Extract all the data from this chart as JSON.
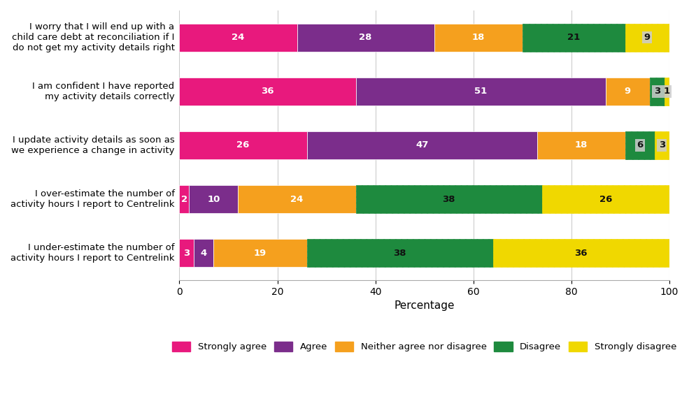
{
  "categories": [
    "I worry that I will end up with a\nchild care debt at reconciliation if I\ndo not get my activity details right",
    "I am confident I have reported\nmy activity details correctly",
    "I update activity details as soon as\nwe experience a change in activity",
    "I over-estimate the number of\nactivity hours I report to Centrelink",
    "I under-estimate the number of\nactivity hours I report to Centrelink"
  ],
  "strongly_agree": [
    24,
    36,
    26,
    2,
    3
  ],
  "agree": [
    28,
    51,
    47,
    10,
    4
  ],
  "neither": [
    18,
    9,
    18,
    24,
    19
  ],
  "disagree": [
    21,
    3,
    6,
    38,
    38
  ],
  "strongly_disagree": [
    9,
    1,
    3,
    26,
    36
  ],
  "colors": {
    "strongly_agree": "#e8197d",
    "agree": "#7b2d8b",
    "neither": "#f5a01e",
    "disagree": "#1e8a3e",
    "strongly_disagree": "#f0d800"
  },
  "hatch": {
    "strongly_agree": "",
    "agree": "",
    "neither": "",
    "disagree": "////",
    "strongly_disagree": "////"
  },
  "legend_labels": [
    "Strongly agree",
    "Agree",
    "Neither agree nor disagree",
    "Disagree",
    "Strongly disagree"
  ],
  "xlabel": "Percentage",
  "xlim": [
    0,
    100
  ],
  "xticks": [
    0,
    20,
    40,
    60,
    80,
    100
  ],
  "bar_height": 0.52,
  "figsize": [
    9.85,
    5.94
  ],
  "dpi": 100,
  "bg_color": "#ffffff",
  "grid_color": "#cccccc",
  "text_color_light": "#ffffff",
  "text_color_dark": "#111111",
  "label_fontsize": 9.5,
  "tick_fontsize": 10,
  "xlabel_fontsize": 11,
  "legend_fontsize": 9.5
}
